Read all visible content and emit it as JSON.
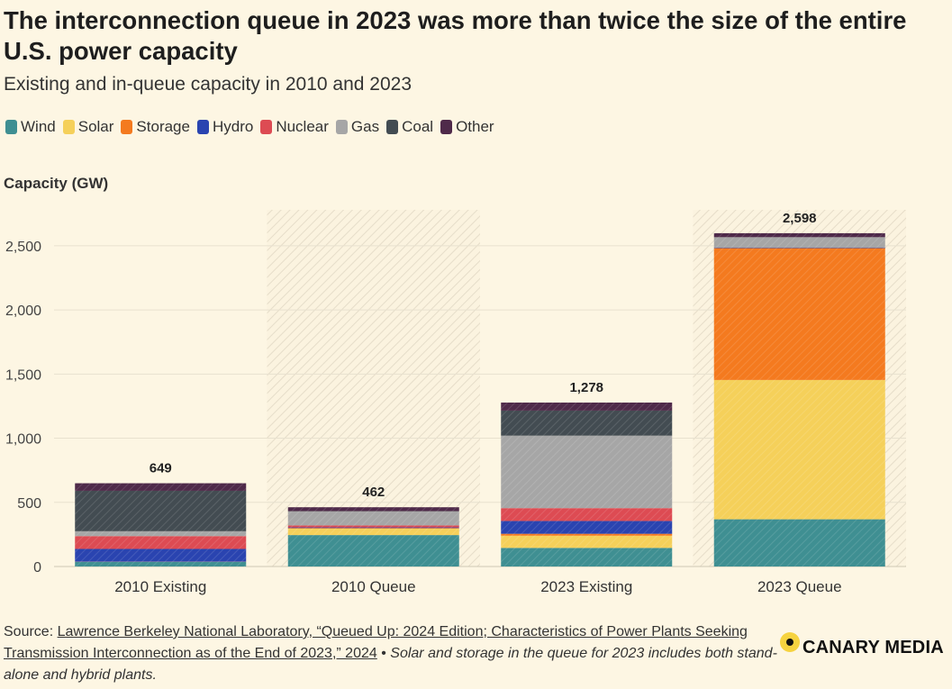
{
  "title": "The interconnection queue in 2023 was more than twice the size of the entire U.S. power capacity",
  "subtitle": "Existing and in-queue capacity in 2010 and 2023",
  "legend": [
    {
      "name": "Wind",
      "color": "#3f8f92"
    },
    {
      "name": "Solar",
      "color": "#f5d05a"
    },
    {
      "name": "Storage",
      "color": "#f47a1f"
    },
    {
      "name": "Hydro",
      "color": "#2a44b0"
    },
    {
      "name": "Nuclear",
      "color": "#dd4b53"
    },
    {
      "name": "Gas",
      "color": "#a6a6a6"
    },
    {
      "name": "Coal",
      "color": "#434c52"
    },
    {
      "name": "Other",
      "color": "#4f2a4a"
    }
  ],
  "footer": {
    "source_prefix": "Source: ",
    "source_link": "Lawrence Berkeley National Laboratory, “Queued Up: 2024 Edition; Characteristics of Power Plants Seeking Transmission Interconnection as of the End of 2023,” 2024",
    "separator": " • ",
    "note": "Solar and storage in the queue for 2023 includes both stand-alone and hybrid plants.",
    "brand": "CANARY MEDIA"
  },
  "chart_data": {
    "type": "bar",
    "stacked": true,
    "ylabel": "Capacity (GW)",
    "ylim": [
      0,
      2780
    ],
    "yticks": [
      0,
      500,
      1000,
      1500,
      2000,
      2500
    ],
    "ytick_labels": [
      "0",
      "500",
      "1,000",
      "1,500",
      "2,000",
      "2,500"
    ],
    "categories": [
      "2010 Existing",
      "2010 Queue",
      "2023 Existing",
      "2023 Queue"
    ],
    "highlighted_categories": [
      "2010 Queue",
      "2023 Queue"
    ],
    "totals": [
      649,
      462,
      1278,
      2598
    ],
    "total_labels": [
      "649",
      "462",
      "1,278",
      "2,598"
    ],
    "series": [
      {
        "name": "Wind",
        "color": "#3f8f92",
        "values": [
          35,
          245,
          145,
          368
        ]
      },
      {
        "name": "Solar",
        "color": "#f5d05a",
        "values": [
          2,
          50,
          95,
          1086
        ]
      },
      {
        "name": "Storage",
        "color": "#f47a1f",
        "values": [
          0,
          5,
          15,
          1028
        ]
      },
      {
        "name": "Hydro",
        "color": "#2a44b0",
        "values": [
          100,
          5,
          100,
          5
        ]
      },
      {
        "name": "Nuclear",
        "color": "#dd4b53",
        "values": [
          100,
          15,
          100,
          0
        ]
      },
      {
        "name": "Gas",
        "color": "#a6a6a6",
        "values": [
          38,
          110,
          565,
          80
        ]
      },
      {
        "name": "Coal",
        "color": "#434c52",
        "values": [
          315,
          2,
          195,
          0
        ]
      },
      {
        "name": "Other",
        "color": "#4f2a4a",
        "values": [
          59,
          30,
          63,
          31
        ]
      }
    ],
    "grid": true
  }
}
